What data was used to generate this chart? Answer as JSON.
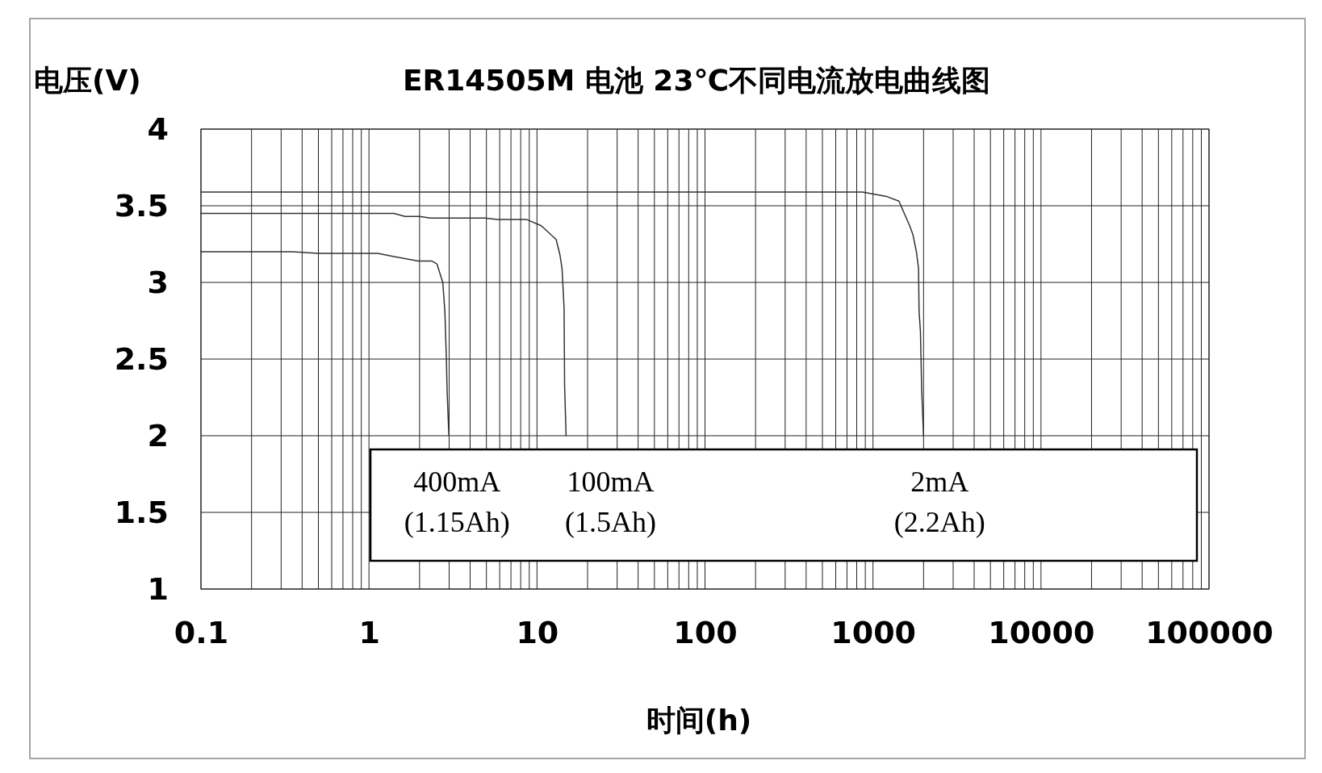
{
  "chart_data": {
    "type": "line",
    "title": "ER14505M 电池 23℃不同电流放电曲线图",
    "xlabel": "时间(h)",
    "ylabel": "电压(V)",
    "log": "x",
    "grid": true,
    "legend": "bottom",
    "line_style": "solid",
    "marker": "none",
    "xlim": [
      0.1,
      100000
    ],
    "xticks": [
      0.1,
      1,
      10,
      100,
      1000,
      10000,
      100000
    ],
    "ylim": [
      1,
      4
    ],
    "yticks": [
      1,
      1.5,
      2,
      2.5,
      3,
      3.5,
      4
    ],
    "series": [
      {
        "name": "400mA (1.15Ah)",
        "color": "#333333",
        "x": [
          0.1,
          0.35,
          0.5,
          1.13,
          1.39,
          1.96,
          2.36,
          2.54,
          2.75,
          2.83,
          2.89,
          2.92,
          2.99
        ],
        "values": [
          3.2,
          3.2,
          3.19,
          3.19,
          3.17,
          3.14,
          3.14,
          3.12,
          3.0,
          2.81,
          2.5,
          2.28,
          2.0
        ]
      },
      {
        "name": "100mA (1.5Ah)",
        "color": "#333333",
        "x": [
          0.1,
          1.41,
          1.64,
          2,
          2.32,
          4.9,
          5.8,
          8.7,
          10.6,
          13,
          13.7,
          14.1,
          14.5,
          14.6,
          14.9
        ],
        "values": [
          3.45,
          3.45,
          3.43,
          3.43,
          3.42,
          3.42,
          3.41,
          3.41,
          3.37,
          3.28,
          3.18,
          3.09,
          2.83,
          2.33,
          2.0
        ]
      },
      {
        "name": "2mA (2.2Ah)",
        "color": "#333333",
        "x": [
          0.1,
          865,
          1208,
          1427,
          1653,
          1730,
          1813,
          1867,
          1880,
          1916,
          1950,
          2000
        ],
        "values": [
          3.59,
          3.59,
          3.56,
          3.53,
          3.37,
          3.31,
          3.2,
          3.09,
          2.81,
          2.68,
          2.29,
          2.0
        ]
      }
    ]
  }
}
